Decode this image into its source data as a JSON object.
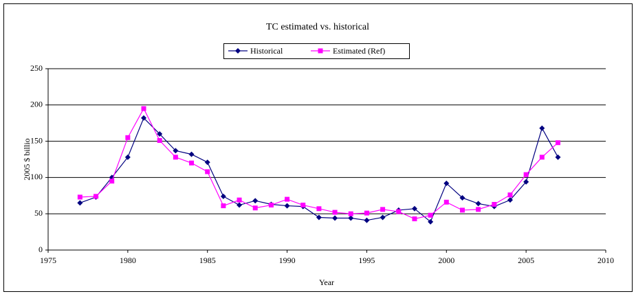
{
  "chart_data": {
    "type": "line",
    "title": "TC estimated vs. historical",
    "x_label": "Year",
    "y_label": "2005 $ billio",
    "x": [
      1977,
      1978,
      1979,
      1980,
      1981,
      1982,
      1983,
      1984,
      1985,
      1986,
      1987,
      1988,
      1989,
      1990,
      1991,
      1992,
      1993,
      1994,
      1995,
      1996,
      1997,
      1998,
      1999,
      2000,
      2001,
      2002,
      2003,
      2004,
      2005,
      2006,
      2007
    ],
    "series": [
      {
        "name": "Historical",
        "color": "#000080",
        "marker": "diamond",
        "values": [
          65,
          73,
          100,
          128,
          182,
          160,
          137,
          132,
          121,
          74,
          62,
          68,
          63,
          61,
          60,
          45,
          44,
          44,
          41,
          45,
          55,
          57,
          39,
          92,
          72,
          64,
          60,
          69,
          94,
          168,
          128
        ]
      },
      {
        "name": "Estimated (Ref)",
        "color": "#ff00ff",
        "marker": "square",
        "values": [
          73,
          74,
          95,
          155,
          195,
          151,
          128,
          120,
          108,
          61,
          69,
          58,
          62,
          70,
          62,
          57,
          52,
          50,
          51,
          56,
          53,
          43,
          48,
          66,
          55,
          56,
          63,
          76,
          104,
          128,
          148
        ]
      }
    ],
    "xlim": [
      1975,
      2010
    ],
    "xticks": [
      1975,
      1980,
      1985,
      1990,
      1995,
      2000,
      2005,
      2010
    ],
    "ylim": [
      0,
      250
    ],
    "yticks": [
      0,
      50,
      100,
      150,
      200,
      250
    ],
    "grid": true,
    "legend": "top"
  }
}
